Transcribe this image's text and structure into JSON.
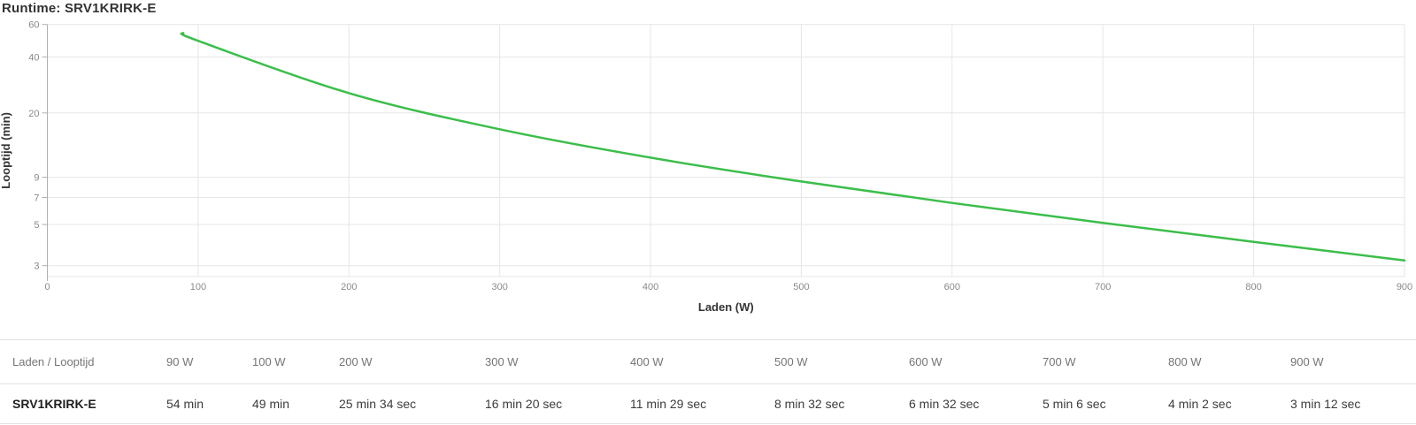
{
  "chart": {
    "title": "Runtime: SRV1KRIRK-E",
    "colors": {
      "line": "#3bbe4a",
      "grid": "#e6e6e6",
      "axis": "#b0b0b0",
      "tick_label": "#8a8a8a",
      "axis_title": "#333333",
      "title": "#333333"
    }
  },
  "chart_data": {
    "type": "line",
    "title": "Runtime: SRV1KRIRK-E",
    "xlabel": "Laden (W)",
    "ylabel": "Looptijd (min)",
    "series": [
      {
        "name": "SRV1KRIRK-E",
        "x": [
          90,
          100,
          200,
          300,
          400,
          500,
          600,
          700,
          800,
          900
        ],
        "y": [
          54,
          49,
          25.5667,
          16.3333,
          11.4833,
          8.5333,
          6.5333,
          5.1,
          4.0333,
          3.2
        ],
        "runtime_labels": [
          "54 min",
          "49 min",
          "25 min 34 sec",
          "16 min 20 sec",
          "11 min 29 sec",
          "8 min 32 sec",
          "6 min 32 sec",
          "5 min 6 sec",
          "4 min 2 sec",
          "3 min 12 sec"
        ]
      }
    ],
    "x_ticks": [
      0,
      100,
      200,
      300,
      400,
      500,
      600,
      700,
      800,
      900
    ],
    "y_ticks": [
      60,
      40,
      20,
      9,
      7,
      5,
      3
    ],
    "y_scale": "log",
    "xlim": [
      0,
      900
    ],
    "ylim": [
      2.62,
      60
    ],
    "grid": true,
    "legend": "none"
  },
  "table": {
    "corner_label": "Laden / Looptijd",
    "columns": [
      "90 W",
      "100 W",
      "200 W",
      "300 W",
      "400 W",
      "500 W",
      "600 W",
      "700 W",
      "800 W",
      "900 W"
    ],
    "row_label": "SRV1KRIRK-E",
    "values": [
      "54 min",
      "49 min",
      "25 min 34 sec",
      "16 min 20 sec",
      "11 min 29 sec",
      "8 min 32 sec",
      "6 min 32 sec",
      "5 min 6 sec",
      "4 min 2 sec",
      "3 min 12 sec"
    ]
  }
}
